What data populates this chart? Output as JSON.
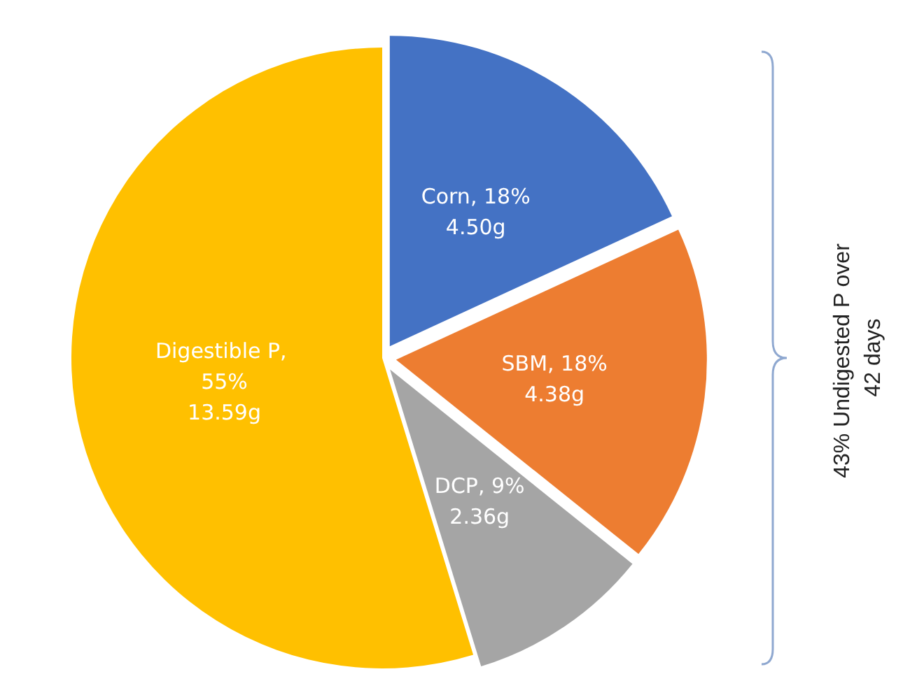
{
  "chart_data": {
    "type": "pie",
    "categories": [
      "Corn, 18%",
      "SBM, 18%",
      "DCP, 9%",
      "Digestible P, 55%"
    ],
    "values": [
      4.5,
      4.38,
      2.36,
      13.59
    ],
    "value_labels": [
      "4.50g",
      "4.38g",
      "2.36g",
      "13.59g"
    ],
    "colors": [
      "#4472c4",
      "#ed7d31",
      "#a5a5a5",
      "#ffc000"
    ],
    "annotations": [
      "43% Undigested P over 42 days"
    ],
    "legend": false
  }
}
